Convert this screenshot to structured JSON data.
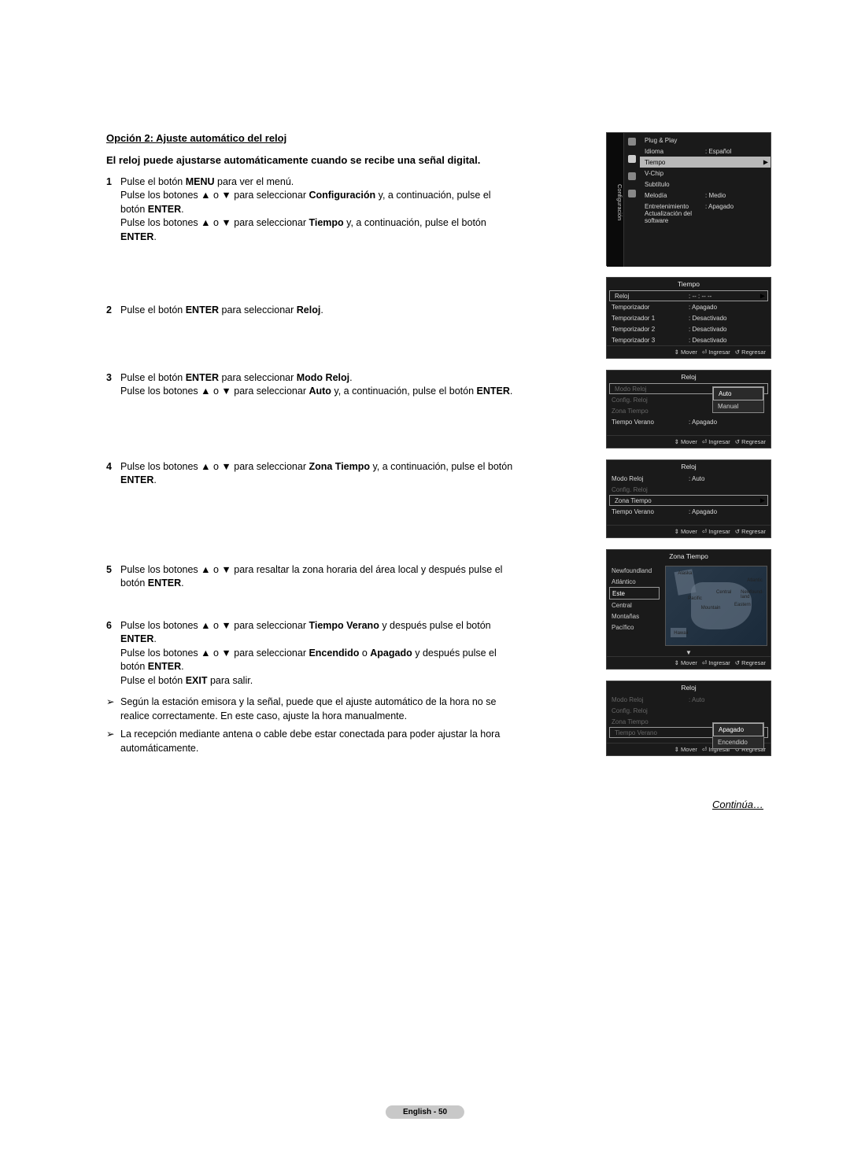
{
  "title": "Opción 2: Ajuste automático del reloj",
  "lead": "El reloj puede ajustarse automáticamente cuando se recibe una señal digital.",
  "steps": [
    {
      "num": "1",
      "html": "Pulse el botón <b>MENU</b> para ver el menú.<br>Pulse los botones ▲ o ▼ para seleccionar <b>Configuración</b> y, a continuación, pulse el botón <b>ENTER</b>.<br>Pulse los botones ▲ o ▼ para seleccionar <b>Tiempo</b> y, a continuación, pulse el botón <b>ENTER</b>.",
      "spacer": "spacer-1"
    },
    {
      "num": "2",
      "html": "Pulse el botón <b>ENTER</b> para seleccionar <b>Reloj</b>.",
      "spacer": "spacer-2"
    },
    {
      "num": "3",
      "html": "Pulse el botón <b>ENTER</b> para seleccionar <b>Modo Reloj</b>.<br>Pulse los botones ▲ o ▼ para seleccionar <b>Auto</b> y, a continuación, pulse el botón <b>ENTER</b>.",
      "spacer": "spacer-3"
    },
    {
      "num": "4",
      "html": "Pulse los botones ▲ o ▼ para seleccionar <b>Zona Tiempo</b> y, a continuación, pulse el botón <b>ENTER</b>.",
      "spacer": "spacer-4"
    },
    {
      "num": "5",
      "html": "Pulse los botones ▲ o ▼ para resaltar la zona horaria del área local y después pulse el botón <b>ENTER</b>.",
      "spacer": "spacer-5"
    },
    {
      "num": "6",
      "html": "Pulse los botones ▲ o ▼ para seleccionar <b>Tiempo Verano</b> y después pulse el botón <b>ENTER</b>.<br>Pulse los botones ▲ o ▼ para seleccionar <b>Encendido</b> o <b>Apagado</b> y después pulse el botón <b>ENTER</b>.<br>Pulse el botón <b>EXIT</b> para salir.",
      "spacer": ""
    }
  ],
  "notes": [
    "Según la estación emisora y la señal, puede que el ajuste automático de la hora no se realice correctamente. En este caso, ajuste la hora manualmente.",
    "La recepción mediante antena o cable debe estar conectada para poder ajustar la hora automáticamente."
  ],
  "continua": "Continúa…",
  "footer": "English - 50",
  "panels": {
    "config": {
      "tab": "Configuración",
      "rows": [
        {
          "k": "Plug & Play",
          "v": ""
        },
        {
          "k": "Idioma",
          "v": ": Español"
        },
        {
          "k": "Tiempo",
          "v": "",
          "sel": true,
          "arrow": "▶"
        },
        {
          "k": "V-Chip",
          "v": ""
        },
        {
          "k": "Subtítulo",
          "v": ""
        },
        {
          "k": "Melodía",
          "v": ": Medio"
        },
        {
          "k": "Entretenimiento",
          "v": ": Apagado"
        },
        {
          "k": "Actualización del software",
          "v": ""
        }
      ]
    },
    "tiempo": {
      "title": "Tiempo",
      "rows": [
        {
          "k": "Reloj",
          "v": ": -- : -- --",
          "hl": true,
          "arrow": "▶"
        },
        {
          "k": "Temporizador",
          "v": ": Apagado"
        },
        {
          "k": "Temporizador 1",
          "v": ": Desactivado"
        },
        {
          "k": "Temporizador 2",
          "v": ": Desactivado"
        },
        {
          "k": "Temporizador 3",
          "v": ": Desactivado"
        }
      ],
      "footer": [
        "⇕ Mover",
        "⏎ Ingresar",
        "↺ Regresar"
      ]
    },
    "reloj1": {
      "title": "Reloj",
      "rows": [
        {
          "k": "Modo Reloj",
          "v": "",
          "hl": true,
          "dim": true
        },
        {
          "k": "Config. Reloj",
          "v": "",
          "dim": true
        },
        {
          "k": "Zona Tiempo",
          "v": "",
          "dim": true
        },
        {
          "k": "Tiempo Verano",
          "v": ": Apagado"
        }
      ],
      "dropdown": [
        "Auto",
        "Manual"
      ],
      "footer": [
        "⇕ Mover",
        "⏎ Ingresar",
        "↺ Regresar"
      ]
    },
    "reloj2": {
      "title": "Reloj",
      "rows": [
        {
          "k": "Modo Reloj",
          "v": ": Auto"
        },
        {
          "k": "Config. Reloj",
          "v": "",
          "dim": true
        },
        {
          "k": "Zona Tiempo",
          "v": "",
          "hl": true,
          "arrow": "▶"
        },
        {
          "k": "Tiempo Verano",
          "v": ": Apagado"
        }
      ],
      "footer": [
        "⇕ Mover",
        "⏎ Ingresar",
        "↺ Regresar"
      ]
    },
    "zona": {
      "title": "Zona Tiempo",
      "items": [
        "Newfoundland",
        "Atlántico",
        "Este",
        "Central",
        "Montañas",
        "Pacífico"
      ],
      "sel": "Este",
      "maplabels": [
        "Alaska",
        "Pacific",
        "Mountain",
        "Central",
        "Eastern",
        "Atlantic",
        "Newfound-land",
        "Hawaii"
      ],
      "footer": [
        "⇕ Mover",
        "⏎ Ingresar",
        "↺ Regresar"
      ]
    },
    "reloj3": {
      "title": "Reloj",
      "rows": [
        {
          "k": "Modo Reloj",
          "v": ": Auto",
          "dim": true
        },
        {
          "k": "Config. Reloj",
          "v": "",
          "dim": true
        },
        {
          "k": "Zona Tiempo",
          "v": "",
          "dim": true
        },
        {
          "k": "Tiempo Verano",
          "v": "",
          "hl": true,
          "dim": true
        }
      ],
      "dropdown": [
        "Apagado",
        "Encendido"
      ],
      "footer": [
        "⇕ Mover",
        "⏎ Ingresar",
        "↺ Regresar"
      ]
    }
  }
}
